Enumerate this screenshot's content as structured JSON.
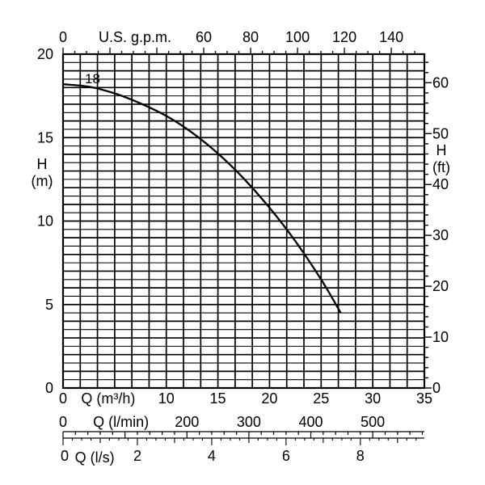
{
  "chart_data": {
    "type": "line",
    "title": "",
    "x": [
      0,
      2.5,
      5,
      7.5,
      10,
      12.5,
      15,
      17.5,
      20,
      22.5,
      25,
      26.9
    ],
    "series": [
      {
        "name": "",
        "label": "18",
        "values": [
          18.2,
          18.05,
          17.65,
          17.05,
          16.3,
          15.3,
          14.05,
          12.55,
          10.8,
          8.8,
          6.5,
          4.5
        ]
      }
    ],
    "xlabel": "Q (m³/h)",
    "ylabel": "H\n(m)",
    "xlim": [
      0,
      35
    ],
    "ylim": [
      0,
      20
    ],
    "x_ticks": [
      "0",
      "10",
      "15",
      "20",
      "25",
      "30",
      "35"
    ],
    "y_ticks": [
      "0",
      "5",
      "10",
      "15",
      "20"
    ],
    "grid": true,
    "right_axis": {
      "label": "H\n(ft)",
      "ticks": [
        "0",
        "10",
        "20",
        "30",
        "40",
        "50",
        "60"
      ]
    },
    "top_axis": {
      "label": "U.S. g.p.m.",
      "ticks": [
        "0",
        "60",
        "80",
        "100",
        "120",
        "140"
      ]
    },
    "bottom_axes": [
      {
        "label": "Q (l/min)",
        "ticks": [
          "0",
          "200",
          "300",
          "400",
          "500"
        ]
      },
      {
        "label": "Q (l/s)",
        "ticks": [
          "0",
          "2",
          "4",
          "6",
          "8"
        ]
      }
    ]
  }
}
